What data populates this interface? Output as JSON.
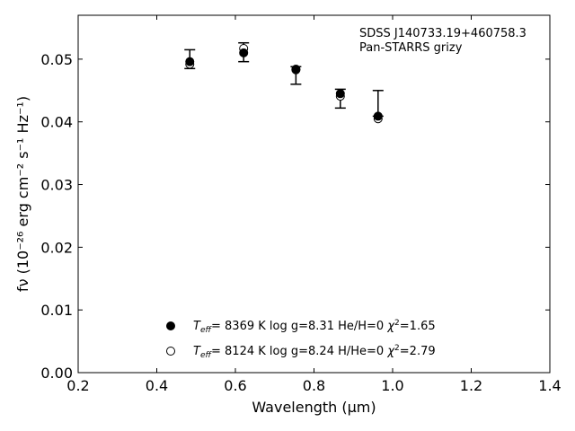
{
  "chart_data": {
    "type": "scatter",
    "title": "",
    "xlabel": "Wavelength (μm)",
    "ylabel": "fν (10⁻²⁶ erg cm⁻² s⁻¹ Hz⁻¹)",
    "xlim": [
      0.2,
      1.4
    ],
    "ylim": [
      0.0,
      0.057
    ],
    "xticks": [
      0.2,
      0.4,
      0.6,
      0.8,
      1.0,
      1.2,
      1.4
    ],
    "xtick_labels": [
      "0.2",
      "0.4",
      "0.6",
      "0.8",
      "1.0",
      "1.2",
      "1.4"
    ],
    "yticks": [
      0.0,
      0.01,
      0.02,
      0.03,
      0.04,
      0.05
    ],
    "ytick_labels": [
      "0.00",
      "0.01",
      "0.02",
      "0.03",
      "0.04",
      "0.05"
    ],
    "grid": false,
    "annotation": [
      "SDSS J140733.19+460758.3",
      "Pan-STARRS grizy"
    ],
    "observed": {
      "x": [
        0.484,
        0.621,
        0.754,
        0.867,
        0.963
      ],
      "y": [
        0.05,
        0.0511,
        0.0474,
        0.0437,
        0.0411
      ],
      "yerr_low": [
        0.0015,
        0.0015,
        0.0014,
        0.0015,
        0.0002
      ],
      "yerr_high": [
        0.0015,
        0.0015,
        0.0014,
        0.0015,
        0.0039
      ]
    },
    "series": [
      {
        "label": {
          "teff": "8369 K",
          "logg": "log g=8.31",
          "comp": "He/H=0",
          "chi2": "=1.65"
        },
        "marker": "filled",
        "x": [
          0.484,
          0.621,
          0.754,
          0.867,
          0.963
        ],
        "y": [
          0.0496,
          0.051,
          0.0484,
          0.0445,
          0.0409
        ]
      },
      {
        "label": {
          "teff": "8124 K",
          "logg": "log g=8.24",
          "comp": "H/He=0",
          "chi2": "=2.79"
        },
        "marker": "open",
        "x": [
          0.484,
          0.621,
          0.754,
          0.867,
          0.963
        ],
        "y": [
          0.0492,
          0.0517,
          0.0483,
          0.0441,
          0.0405
        ]
      }
    ],
    "legend_loc": "lower-center"
  }
}
